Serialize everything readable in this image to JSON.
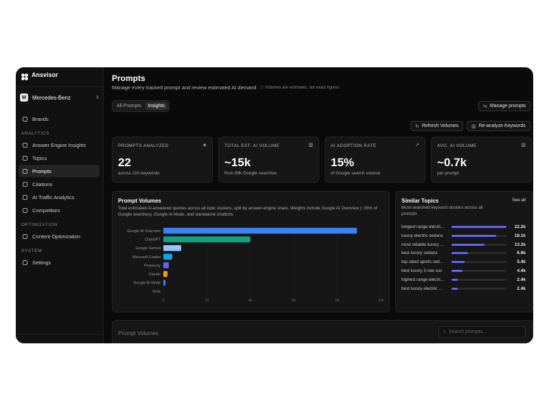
{
  "sidebar": {
    "brand": "Ansvisor",
    "workspace": {
      "initial": "M",
      "name": "Mercedes-Benz"
    },
    "items": [
      {
        "label": "Brands"
      }
    ],
    "sections": [
      {
        "title": "ANALYTICS",
        "items": [
          {
            "label": "Answer Engine Insights"
          },
          {
            "label": "Topics"
          },
          {
            "label": "Prompts",
            "active": true
          },
          {
            "label": "Citations"
          },
          {
            "label": "AI Traffic Analytics"
          },
          {
            "label": "Competitors"
          }
        ]
      },
      {
        "title": "OPTIMIZATION",
        "items": [
          {
            "label": "Content Optimization"
          }
        ]
      },
      {
        "title": "SYSTEM",
        "items": [
          {
            "label": "Settings"
          }
        ]
      }
    ]
  },
  "header": {
    "title": "Prompts",
    "subtitle": "Manage every tracked prompt and review estimated AI demand",
    "note": "Volumes are estimates, not exact figures"
  },
  "tabs": [
    {
      "label": "All Prompts"
    },
    {
      "label": "Insights",
      "active": true
    }
  ],
  "buttons": [
    "Manage prompts",
    "Refresh Volumes",
    "Re-analyze Keywords"
  ],
  "stats": [
    {
      "title": "PROMPTS ANALYZED",
      "value": "22",
      "sub": "across 110 keywords"
    },
    {
      "title": "TOTAL EST. AI VOLUME",
      "value": "~15k",
      "sub": "from 99k Google searches"
    },
    {
      "title": "AI ADOPTION RATE",
      "value": "15%",
      "sub": "of Google search volume"
    },
    {
      "title": "AVG. AI VOLUME",
      "value": "~0.7k",
      "sub": "per prompt"
    }
  ],
  "prompt_volumes_chart": {
    "type": "bar",
    "orientation": "horizontal",
    "title": "Prompt Volumes",
    "subtitle": "Total estimated AI-answered queries across all topic clusters, split by answer-engine share. Weights include Google AI Overview (~35% of Google searches), Google AI Mode, and standalone chatbots.",
    "categories": [
      "Google AI Overview",
      "ChatGPT",
      "Google Gemini",
      "Microsoft Copilot",
      "Perplexity",
      "Claude",
      "Google AI Mode",
      "Grok"
    ],
    "values": [
      8900,
      4000,
      820,
      410,
      250,
      190,
      100,
      0
    ],
    "colors": [
      "#3b82f6",
      "#10a37f",
      "#93c5fd",
      "#0ea5e9",
      "#6366f1",
      "#f59e0b",
      "#3b82f6",
      "#9ca3af"
    ],
    "xlim": [
      0,
      10000
    ],
    "xticks": [
      0,
      {
        "value": 2000,
        "label": "2k"
      },
      {
        "value": 4000,
        "label": "4k"
      },
      {
        "value": 6000,
        "label": "6k"
      },
      {
        "value": 8000,
        "label": "8k"
      },
      {
        "value": 10000,
        "label": "10k"
      }
    ]
  },
  "similar_topics": {
    "title": "Similar Topics",
    "subtitle": "Most-searched keyword clusters across all prompts",
    "link": "See all",
    "color": "#6366f1",
    "names": [
      "longest range electri…",
      "luxury electric sedans",
      "most reliable luxury …",
      "best luxury sedans",
      "top rated sports sed…",
      "best luxury 3 row suv",
      "highest range electri…",
      "best luxury electric …"
    ],
    "values": [
      22200,
      18100,
      13200,
      6600,
      5400,
      4400,
      2400,
      2400
    ],
    "value_labels": [
      "22.2k",
      "18.1k",
      "13.2k",
      "6.6k",
      "5.4k",
      "4.4k",
      "2.4k",
      "2.4k"
    ]
  },
  "bottom_panel": {
    "title": "Prompt Volumes",
    "search_placeholder": "Search prompts..."
  }
}
